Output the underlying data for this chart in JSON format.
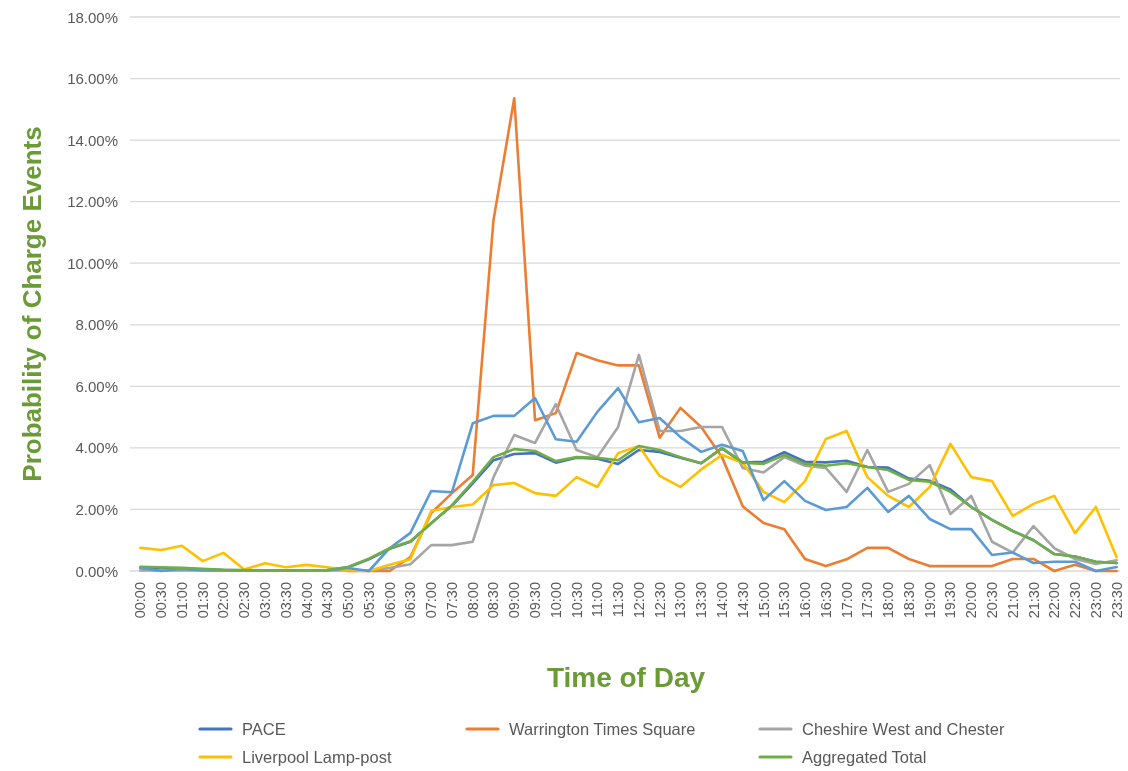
{
  "chart_data": {
    "type": "line",
    "xlabel": "Time of Day",
    "ylabel": "Probability of Charge Events",
    "categories": [
      "00:00",
      "00:30",
      "01:00",
      "01:30",
      "02:00",
      "02:30",
      "03:00",
      "03:30",
      "04:00",
      "04:30",
      "05:00",
      "05:30",
      "06:00",
      "06:30",
      "07:00",
      "07:30",
      "08:00",
      "08:30",
      "09:00",
      "09:30",
      "10:00",
      "10:30",
      "11:00",
      "11:30",
      "12:00",
      "12:30",
      "13:00",
      "13:30",
      "14:00",
      "14:30",
      "15:00",
      "15:30",
      "16:00",
      "16:30",
      "17:00",
      "17:30",
      "18:00",
      "18:30",
      "19:00",
      "19:30",
      "20:00",
      "20:30",
      "21:00",
      "21:30",
      "22:00",
      "22:30",
      "23:00",
      "23:30"
    ],
    "ylim": [
      0,
      18
    ],
    "yticks": [
      {
        "value": 0,
        "label": "0.00%"
      },
      {
        "value": 2,
        "label": "2.00%"
      },
      {
        "value": 4,
        "label": "4.00%"
      },
      {
        "value": 6,
        "label": "6.00%"
      },
      {
        "value": 8,
        "label": "8.00%"
      },
      {
        "value": 10,
        "label": "10.00%"
      },
      {
        "value": 12,
        "label": "12.00%"
      },
      {
        "value": 14,
        "label": "14.00%"
      },
      {
        "value": 16,
        "label": "16.00%"
      },
      {
        "value": 18,
        "label": "18.00%"
      }
    ],
    "grid": "y",
    "legend": "bottom",
    "series": [
      {
        "name": "PACE",
        "color": "#4472c4",
        "values": [
          0.1,
          0.05,
          0.08,
          0.05,
          0.03,
          0.02,
          0.02,
          0.02,
          0.02,
          0.03,
          0.12,
          0.38,
          0.72,
          0.95,
          1.55,
          2.12,
          2.85,
          3.6,
          3.8,
          3.83,
          3.52,
          3.68,
          3.65,
          3.48,
          3.93,
          3.87,
          3.68,
          3.5,
          3.98,
          3.52,
          3.55,
          3.86,
          3.55,
          3.53,
          3.58,
          3.38,
          3.36,
          3.0,
          2.93,
          2.65,
          2.08,
          1.66,
          1.3,
          1.0,
          0.55,
          0.47,
          0.3,
          0.26
        ]
      },
      {
        "name": "Warrington Times Square",
        "color": "#ed7d31",
        "values": [
          null,
          null,
          null,
          null,
          null,
          null,
          null,
          null,
          null,
          null,
          0,
          0,
          0,
          0.45,
          1.88,
          2.53,
          3.12,
          11.4,
          15.36,
          4.9,
          5.13,
          7.08,
          6.85,
          6.68,
          6.68,
          4.33,
          5.3,
          4.68,
          3.7,
          2.1,
          1.56,
          1.36,
          0.39,
          0.16,
          0.38,
          0.75,
          0.75,
          0.39,
          0.16,
          0.16,
          0.16,
          0.16,
          0.39,
          0.39,
          0,
          0.2,
          0,
          0
        ]
      },
      {
        "name": "Cheshire West and Chester",
        "color": "#a5a5a5",
        "values": [
          0.02,
          0.02,
          0.02,
          0.02,
          0.02,
          0.02,
          0.02,
          0.02,
          0.02,
          0.02,
          0.02,
          0.02,
          0.1,
          0.22,
          0.84,
          0.84,
          0.95,
          3.05,
          4.42,
          4.16,
          5.42,
          3.93,
          3.7,
          4.68,
          7.02,
          4.55,
          4.55,
          4.68,
          4.68,
          3.35,
          3.2,
          3.7,
          3.42,
          3.35,
          2.57,
          3.93,
          2.57,
          2.83,
          3.44,
          1.85,
          2.44,
          0.95,
          0.6,
          1.46,
          0.74,
          0.39,
          0.23,
          0.35
        ]
      },
      {
        "name": "Liverpool Lamp-post",
        "color": "#ffc000",
        "values": [
          0.75,
          0.68,
          0.82,
          0.32,
          0.59,
          0.05,
          0.25,
          0.12,
          0.2,
          0.12,
          0.03,
          0,
          0.2,
          0.38,
          1.95,
          2.08,
          2.16,
          2.79,
          2.86,
          2.53,
          2.44,
          3.05,
          2.73,
          3.83,
          4.06,
          3.09,
          2.73,
          3.3,
          3.77,
          3.52,
          2.57,
          2.24,
          2.92,
          4.29,
          4.55,
          3.05,
          2.44,
          2.08,
          2.73,
          4.13,
          3.05,
          2.92,
          1.79,
          2.18,
          2.44,
          1.23,
          2.08,
          0.45
        ]
      },
      {
        "color": "#5b9bd5",
        "values": [
          0.1,
          0,
          0.07,
          0.02,
          0.02,
          0.02,
          0.02,
          0.02,
          0.02,
          0.02,
          0.1,
          0,
          0.74,
          1.24,
          2.6,
          2.56,
          4.8,
          5.04,
          5.04,
          5.62,
          4.28,
          4.2,
          5.17,
          5.94,
          4.83,
          4.97,
          4.35,
          3.87,
          4.1,
          3.9,
          2.3,
          2.92,
          2.28,
          1.98,
          2.08,
          2.7,
          1.92,
          2.44,
          1.69,
          1.36,
          1.36,
          0.52,
          0.6,
          0.26,
          0.3,
          0.3,
          0,
          0.13
        ]
      },
      {
        "name": "Aggregated Total",
        "color": "#70ad47",
        "values": [
          0.14,
          0.12,
          0.1,
          0.07,
          0.04,
          0.03,
          0.02,
          0.02,
          0.02,
          0.03,
          0.13,
          0.4,
          0.74,
          0.97,
          1.55,
          2.14,
          2.9,
          3.7,
          3.96,
          3.9,
          3.57,
          3.7,
          3.68,
          3.6,
          4.06,
          3.93,
          3.7,
          3.5,
          4.0,
          3.52,
          3.48,
          3.77,
          3.48,
          3.42,
          3.5,
          3.38,
          3.28,
          2.96,
          2.9,
          2.57,
          2.08,
          1.66,
          1.3,
          1.0,
          0.55,
          0.47,
          0.3,
          0.26
        ]
      }
    ]
  }
}
